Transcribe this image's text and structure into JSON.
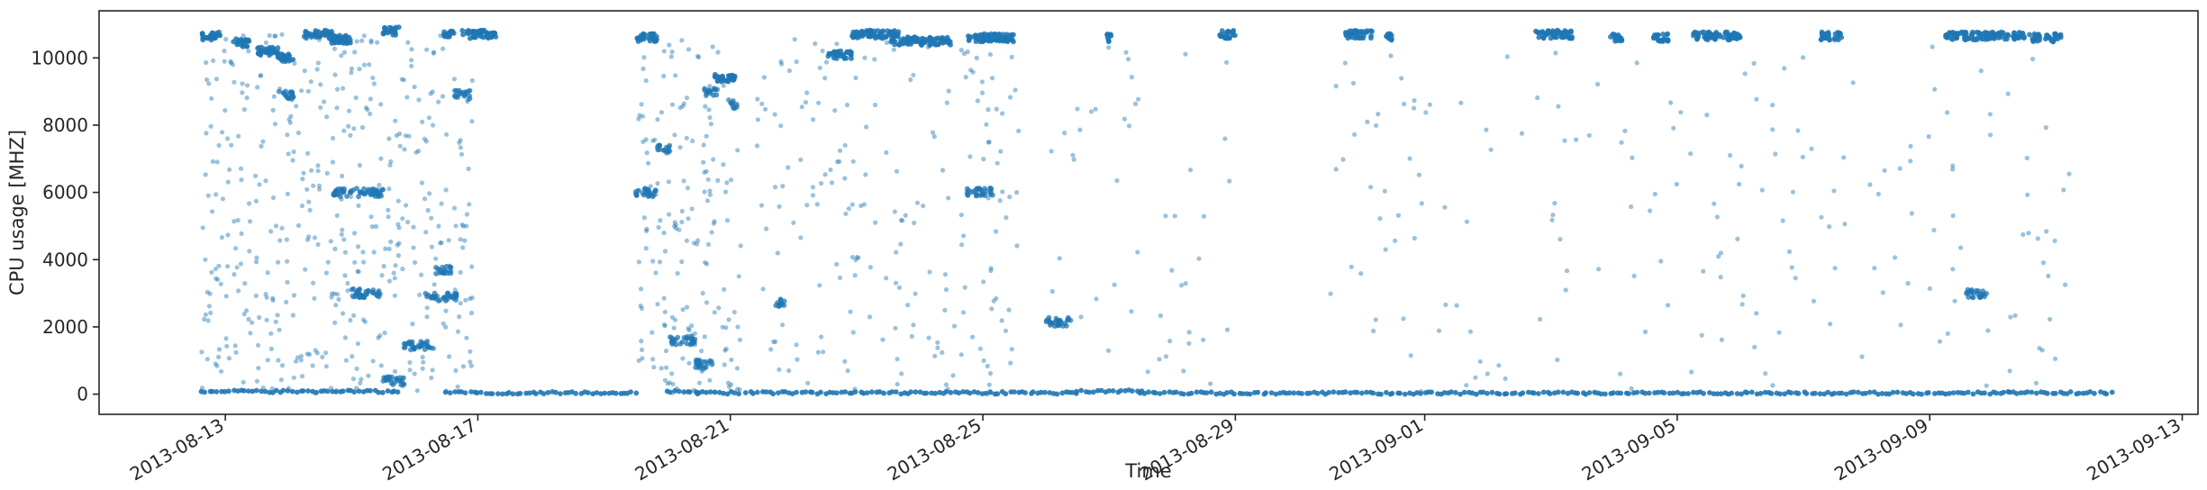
{
  "chart_data": {
    "type": "scatter",
    "title": "",
    "xlabel": "Time",
    "ylabel": "CPU usage [MHZ]",
    "x_axis_type": "date",
    "xlim": [
      "2013-08-11T00:00",
      "2013-09-13T06:00"
    ],
    "ylim": [
      -600,
      11400
    ],
    "x_ticks": [
      "2013-08-13",
      "2013-08-17",
      "2013-08-21",
      "2013-08-25",
      "2013-08-29",
      "2013-09-01",
      "2013-09-05",
      "2013-09-09",
      "2013-09-13"
    ],
    "y_ticks": [
      0,
      2000,
      4000,
      6000,
      8000,
      10000
    ],
    "y_tick_labels": [
      "0",
      "2000",
      "4000",
      "6000",
      "8000",
      "10000"
    ],
    "data_start": "2013-08-12T15:00",
    "data_end": "2013-09-11T22:00",
    "grid": false,
    "legend": "none",
    "marker_color": "#1f77b4",
    "series": [
      {
        "baseline_segments": [
          {
            "from": "2013-08-12T15:00",
            "to": "2013-08-15T18:00",
            "value": 80
          },
          {
            "from": "2013-08-16T12:00",
            "to": "2013-08-19T13:00",
            "value": 40
          },
          {
            "from": "2013-08-20T00:00",
            "to": "2013-08-20T12:00",
            "value": 70
          },
          {
            "from": "2013-08-20T12:00",
            "to": "2013-08-21T03:00",
            "value": 40
          },
          {
            "from": "2013-08-21T06:00",
            "to": "2013-08-26T12:00",
            "value": 40
          },
          {
            "from": "2013-08-26T12:00",
            "to": "2013-08-27T12:00",
            "value": 90
          },
          {
            "from": "2013-08-27T12:00",
            "to": "2013-09-10T06:00",
            "value": 30
          },
          {
            "from": "2013-09-10T06:00",
            "to": "2013-09-11T22:00",
            "value": 40
          }
        ],
        "high_clusters": [
          {
            "from": "2013-08-12T15:00",
            "to": "2013-08-12T22:00",
            "value": 10650
          },
          {
            "from": "2013-08-13T03:00",
            "to": "2013-08-13T09:00",
            "value": 10450
          },
          {
            "from": "2013-08-13T12:00",
            "to": "2013-08-13T20:00",
            "value": 10200
          },
          {
            "from": "2013-08-13T20:00",
            "to": "2013-08-14T02:00",
            "value": 10000
          },
          {
            "from": "2013-08-14T06:00",
            "to": "2013-08-14T17:00",
            "value": 10700
          },
          {
            "from": "2013-08-14T15:00",
            "to": "2013-08-15T00:00",
            "value": 10550
          },
          {
            "from": "2013-08-15T12:00",
            "to": "2013-08-15T18:00",
            "value": 10800
          },
          {
            "from": "2013-08-16T11:00",
            "to": "2013-08-16T15:00",
            "value": 10700
          },
          {
            "from": "2013-08-16T18:00",
            "to": "2013-08-17T07:00",
            "value": 10700
          },
          {
            "from": "2013-08-19T12:00",
            "to": "2013-08-19T20:00",
            "value": 10600
          },
          {
            "from": "2013-08-20T18:00",
            "to": "2013-08-21T02:00",
            "value": 9400
          },
          {
            "from": "2013-08-22T13:00",
            "to": "2013-08-22T22:00",
            "value": 10100
          },
          {
            "from": "2013-08-22T22:00",
            "to": "2013-08-23T16:00",
            "value": 10700
          },
          {
            "from": "2013-08-23T13:00",
            "to": "2013-08-24T12:00",
            "value": 10500
          },
          {
            "from": "2013-08-24T18:00",
            "to": "2013-08-25T12:00",
            "value": 10600
          },
          {
            "from": "2013-08-26T23:00",
            "to": "2013-08-27T01:00",
            "value": 10600
          },
          {
            "from": "2013-08-28T18:00",
            "to": "2013-08-29T00:00",
            "value": 10700
          },
          {
            "from": "2013-08-30T18:00",
            "to": "2013-08-31T04:00",
            "value": 10700
          },
          {
            "from": "2013-08-31T09:00",
            "to": "2013-08-31T12:00",
            "value": 10600
          },
          {
            "from": "2013-09-02T18:00",
            "to": "2013-09-03T08:00",
            "value": 10700
          },
          {
            "from": "2013-09-03T22:00",
            "to": "2013-09-04T03:00",
            "value": 10600
          },
          {
            "from": "2013-09-04T15:00",
            "to": "2013-09-04T21:00",
            "value": 10600
          },
          {
            "from": "2013-09-05T06:00",
            "to": "2013-09-06T00:00",
            "value": 10650
          },
          {
            "from": "2013-09-07T06:00",
            "to": "2013-09-07T15:00",
            "value": 10650
          },
          {
            "from": "2013-09-09T06:00",
            "to": "2013-09-09T20:00",
            "value": 10650
          },
          {
            "from": "2013-09-09T21:00",
            "to": "2013-09-10T12:00",
            "value": 10650
          },
          {
            "from": "2013-09-10T13:00",
            "to": "2013-09-10T18:00",
            "value": 10600
          },
          {
            "from": "2013-09-10T20:00",
            "to": "2013-09-11T02:00",
            "value": 10600
          }
        ],
        "mid_clusters": [
          {
            "from": "2013-08-13T20:00",
            "to": "2013-08-14T02:00",
            "value": 8900
          },
          {
            "from": "2013-08-14T17:00",
            "to": "2013-08-15T12:00",
            "value": 6000
          },
          {
            "from": "2013-08-15T00:00",
            "to": "2013-08-15T11:00",
            "value": 3000
          },
          {
            "from": "2013-08-15T12:00",
            "to": "2013-08-15T20:00",
            "value": 400
          },
          {
            "from": "2013-08-15T20:00",
            "to": "2013-08-16T07:00",
            "value": 1450
          },
          {
            "from": "2013-08-16T04:00",
            "to": "2013-08-16T16:00",
            "value": 2900
          },
          {
            "from": "2013-08-16T08:00",
            "to": "2013-08-16T14:00",
            "value": 3700
          },
          {
            "from": "2013-08-16T15:00",
            "to": "2013-08-16T21:00",
            "value": 8900
          },
          {
            "from": "2013-08-19T12:00",
            "to": "2013-08-19T20:00",
            "value": 6000
          },
          {
            "from": "2013-08-19T20:00",
            "to": "2013-08-20T01:00",
            "value": 7300
          },
          {
            "from": "2013-08-20T01:00",
            "to": "2013-08-20T11:00",
            "value": 1600
          },
          {
            "from": "2013-08-20T10:00",
            "to": "2013-08-20T18:00",
            "value": 900
          },
          {
            "from": "2013-08-20T14:00",
            "to": "2013-08-20T19:00",
            "value": 9000
          },
          {
            "from": "2013-08-21T00:00",
            "to": "2013-08-21T03:00",
            "value": 8600
          },
          {
            "from": "2013-08-21T17:00",
            "to": "2013-08-21T21:00",
            "value": 2700
          },
          {
            "from": "2013-08-24T18:00",
            "to": "2013-08-25T04:00",
            "value": 6000
          },
          {
            "from": "2013-08-26T00:00",
            "to": "2013-08-26T10:00",
            "value": 2150
          },
          {
            "from": "2013-09-09T14:00",
            "to": "2013-09-09T22:00",
            "value": 3000
          }
        ],
        "scatter_regions": [
          {
            "from": "2013-08-12T15:00",
            "to": "2013-08-16T22:00",
            "min": 0,
            "max": 10700,
            "density": "high"
          },
          {
            "from": "2013-08-19T12:00",
            "to": "2013-08-21T04:00",
            "min": 0,
            "max": 10600,
            "density": "high"
          },
          {
            "from": "2013-08-21T10:00",
            "to": "2013-08-25T14:00",
            "min": 0,
            "max": 10600,
            "density": "medium"
          },
          {
            "from": "2013-08-26T00:00",
            "to": "2013-08-29T00:00",
            "min": 0,
            "max": 10500,
            "density": "low"
          },
          {
            "from": "2013-08-30T12:00",
            "to": "2013-09-11T06:00",
            "min": 0,
            "max": 10500,
            "density": "low"
          }
        ]
      }
    ]
  }
}
